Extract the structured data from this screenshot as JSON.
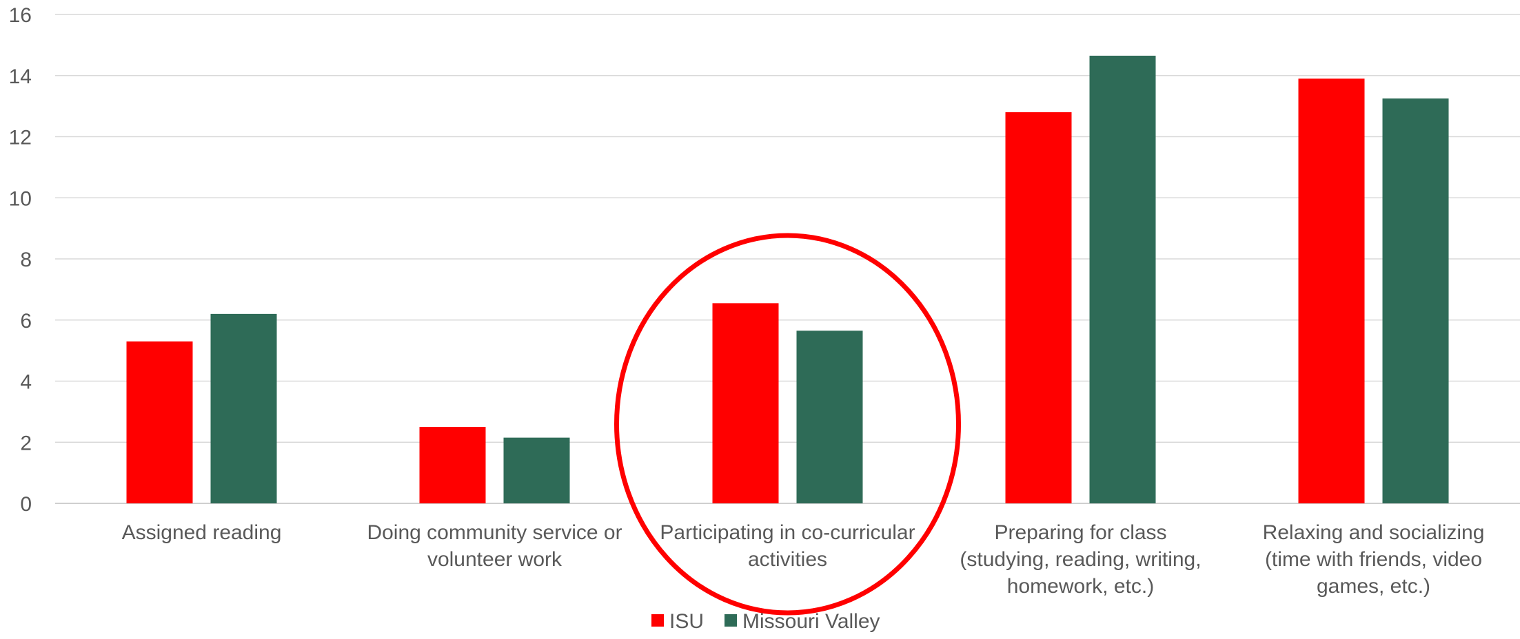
{
  "chart_data": {
    "type": "bar",
    "categories": [
      [
        "Assigned reading"
      ],
      [
        "Doing community service or",
        "volunteer work"
      ],
      [
        "Participating in co-curricular",
        "activities"
      ],
      [
        "Preparing for class",
        "(studying, reading, writing,",
        "homework, etc.)"
      ],
      [
        "Relaxing and socializing",
        "(time with friends, video",
        "games, etc.)"
      ]
    ],
    "series": [
      {
        "name": "ISU",
        "color": "#ff0000",
        "values": [
          5.3,
          2.5,
          6.55,
          12.8,
          13.9
        ]
      },
      {
        "name": "Missouri Valley",
        "color": "#2e6b57",
        "values": [
          6.2,
          2.15,
          5.65,
          14.65,
          13.25
        ]
      }
    ],
    "ylim": [
      0,
      16
    ],
    "yticks": [
      0,
      2,
      4,
      6,
      8,
      10,
      12,
      14,
      16
    ],
    "grid": true,
    "legend": "bottom",
    "annotation": {
      "type": "ellipse",
      "highlights_category": 2,
      "color": "#ff0000"
    },
    "title": "",
    "xlabel": "",
    "ylabel": ""
  }
}
